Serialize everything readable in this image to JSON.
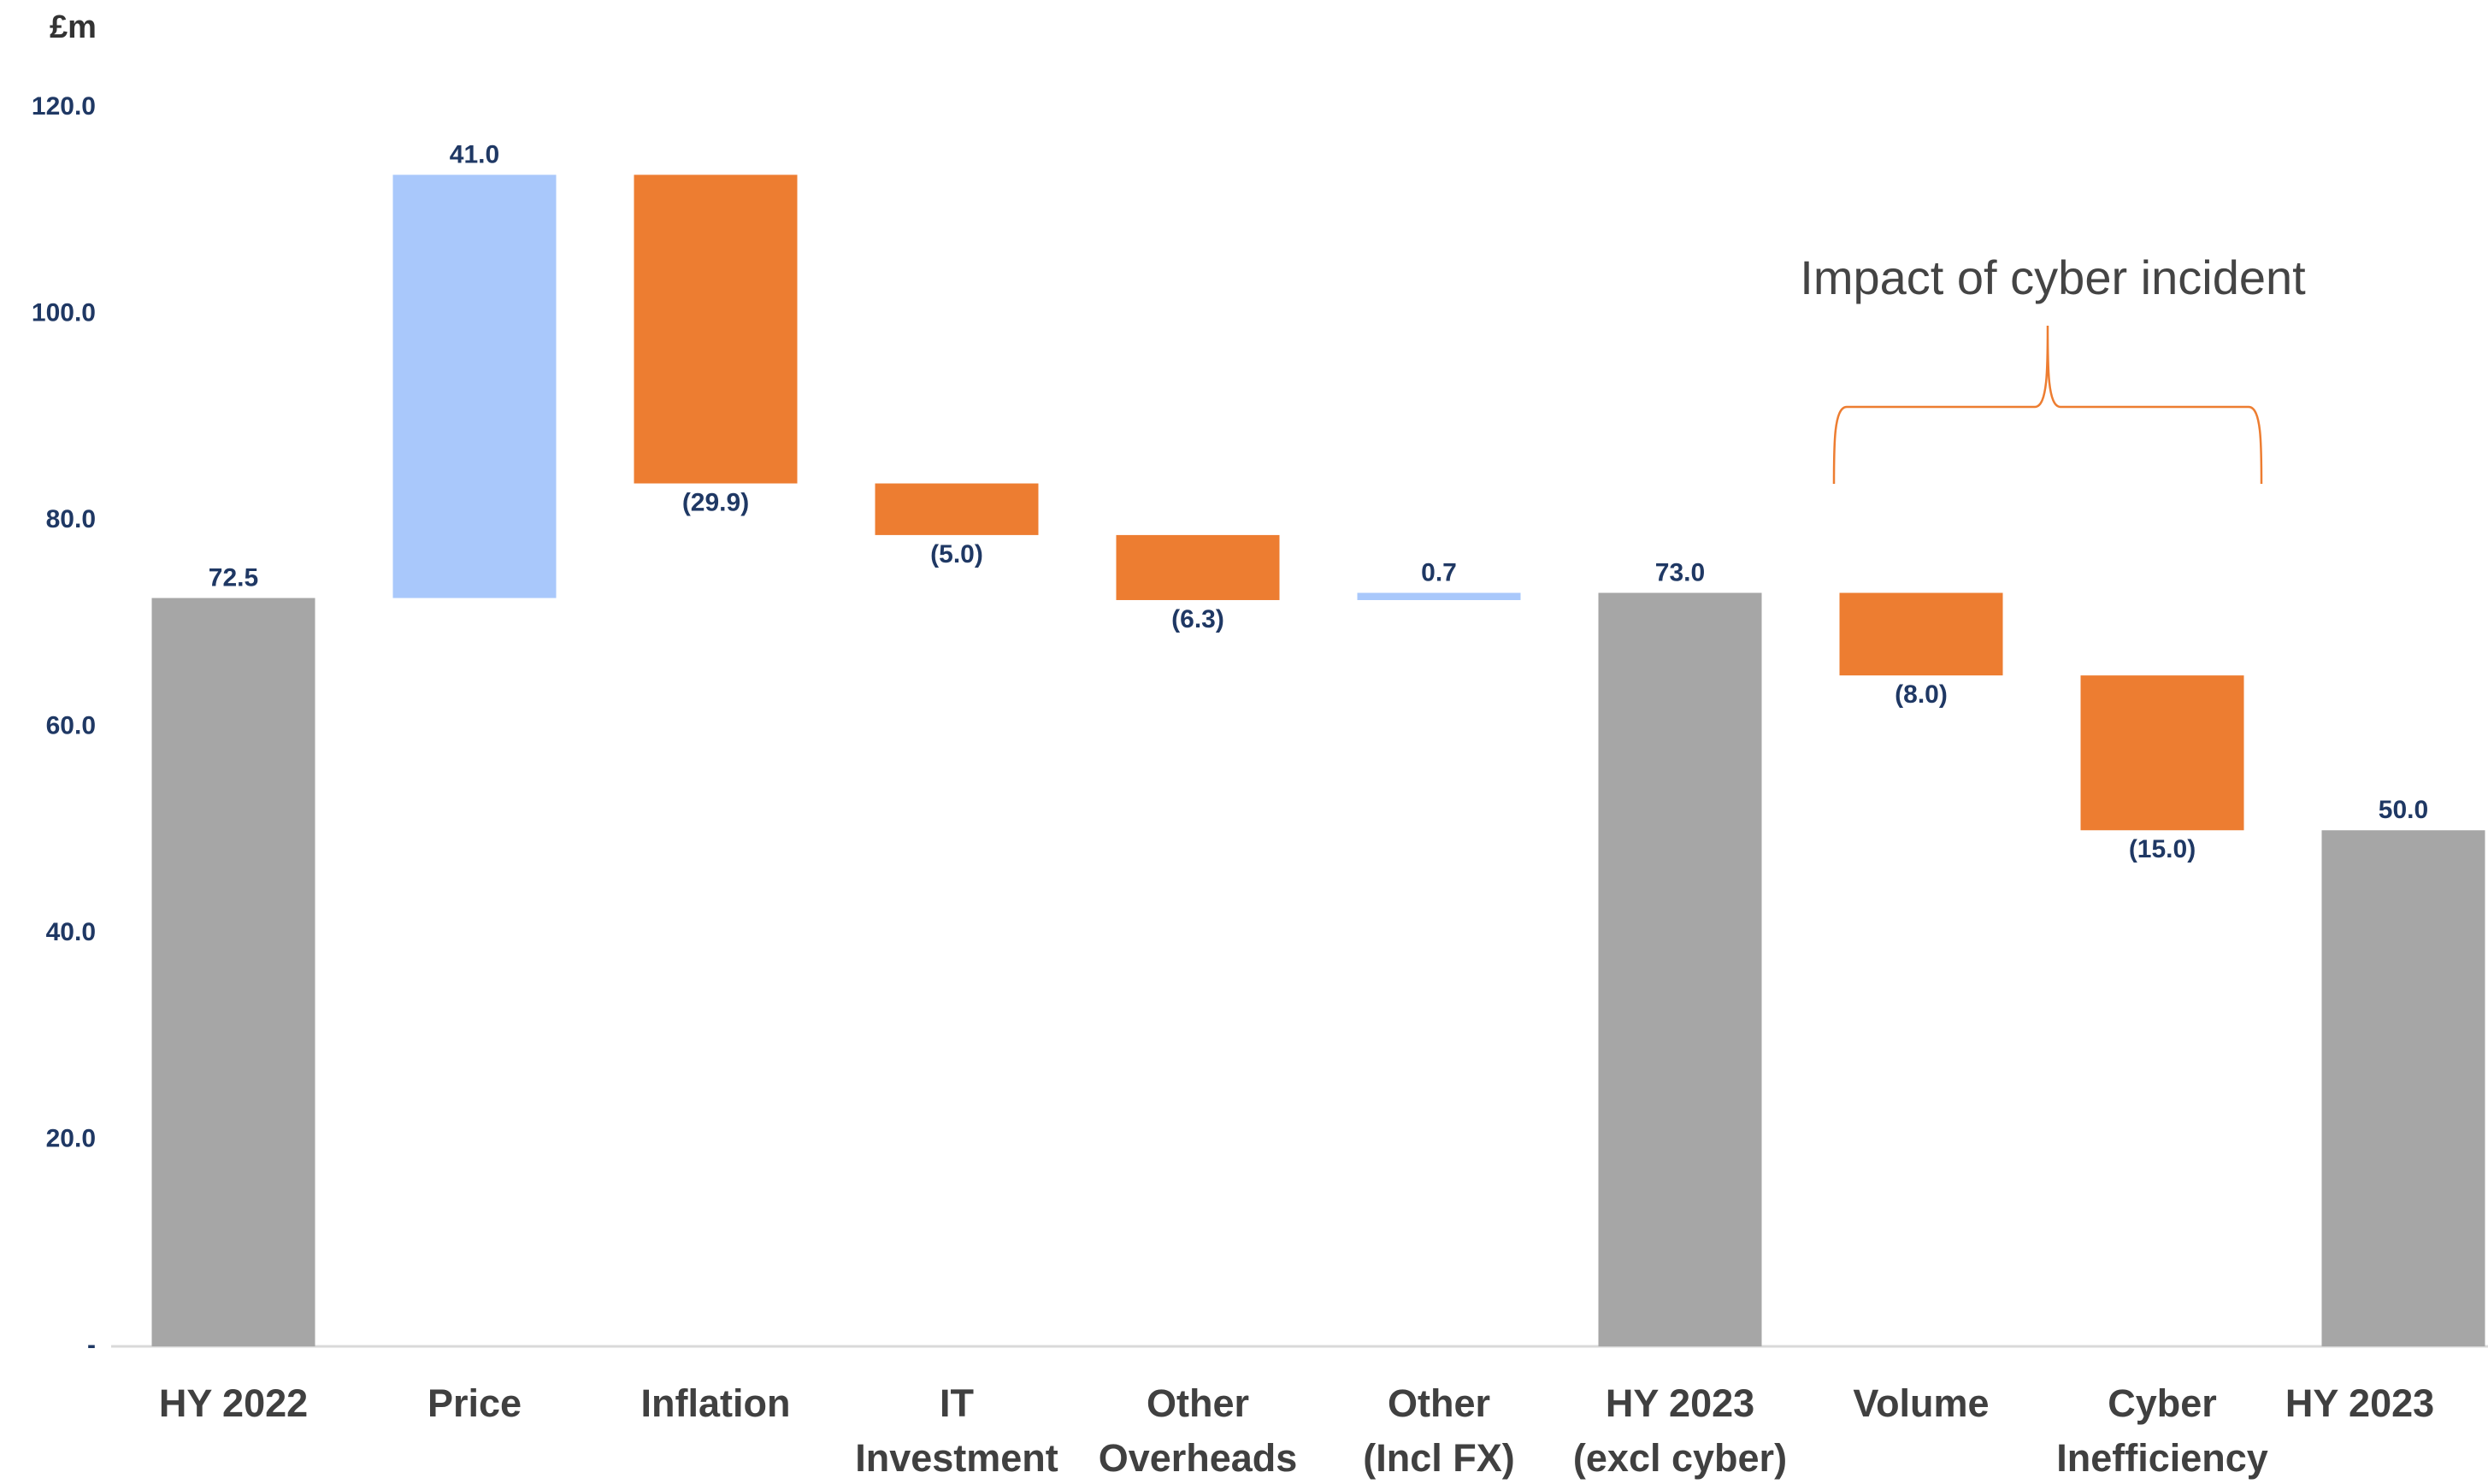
{
  "chart_data": {
    "type": "waterfall",
    "y_axis_label": "£m",
    "annotation": "Impact of cyber incident",
    "categories": [
      "HY 2022",
      "Price",
      "Inflation",
      "IT\nInvestment",
      "Other\nOverheads",
      "Other\n(Incl FX)",
      "HY 2023\n(excl cyber)",
      "Volume",
      "Cyber\nInefficiency",
      "HY 2023"
    ],
    "values": [
      72.5,
      41.0,
      -29.9,
      -5.0,
      -6.3,
      0.7,
      73.0,
      -8.0,
      -15.0,
      50.0
    ],
    "value_labels": [
      "72.5",
      "41.0",
      "(29.9)",
      "(5.0)",
      "(6.3)",
      "0.7",
      "73.0",
      "(8.0)",
      "(15.0)",
      "50.0"
    ],
    "measure": [
      "total",
      "relative",
      "relative",
      "relative",
      "relative",
      "relative",
      "total",
      "relative",
      "relative",
      "total"
    ],
    "colors": {
      "total": "#a6a6a6",
      "increase": "#a9c8fb",
      "decrease": "#ed7d31"
    },
    "ylim": [
      0,
      120
    ],
    "yticks": [
      {
        "value": 0,
        "label": "-"
      },
      {
        "value": 20,
        "label": "20.0"
      },
      {
        "value": 40,
        "label": "40.0"
      },
      {
        "value": 60,
        "label": "60.0"
      },
      {
        "value": 80,
        "label": "80.0"
      },
      {
        "value": 100,
        "label": "100.0"
      },
      {
        "value": 120,
        "label": "120.0"
      }
    ],
    "grid": false
  }
}
